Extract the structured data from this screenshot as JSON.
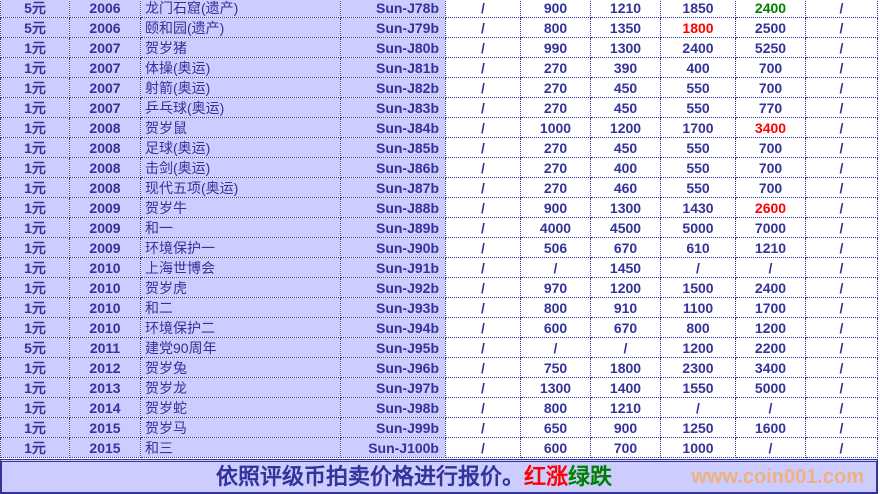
{
  "colors": {
    "text": "#333399",
    "left_bg": "#ccccff",
    "up": "#ff0000",
    "down": "#008000"
  },
  "rows": [
    [
      "5元",
      "2006",
      "龙门石窟(遗产)",
      "Sun-J78b",
      "/",
      "900",
      "1210",
      "1850",
      "2400",
      "/"
    ],
    [
      "5元",
      "2006",
      "颐和园(遗产)",
      "Sun-J79b",
      "/",
      "800",
      "1350",
      "1800",
      "2500",
      "/"
    ],
    [
      "1元",
      "2007",
      "贺岁猪",
      "Sun-J80b",
      "/",
      "990",
      "1300",
      "2400",
      "5250",
      "/"
    ],
    [
      "1元",
      "2007",
      "体操(奥运)",
      "Sun-J81b",
      "/",
      "270",
      "390",
      "400",
      "700",
      "/"
    ],
    [
      "1元",
      "2007",
      "射箭(奥运)",
      "Sun-J82b",
      "/",
      "270",
      "450",
      "550",
      "700",
      "/"
    ],
    [
      "1元",
      "2007",
      "乒乓球(奥运)",
      "Sun-J83b",
      "/",
      "270",
      "450",
      "550",
      "770",
      "/"
    ],
    [
      "1元",
      "2008",
      "贺岁鼠",
      "Sun-J84b",
      "/",
      "1000",
      "1200",
      "1700",
      "3400",
      "/"
    ],
    [
      "1元",
      "2008",
      "足球(奥运)",
      "Sun-J85b",
      "/",
      "270",
      "450",
      "550",
      "700",
      "/"
    ],
    [
      "1元",
      "2008",
      "击剑(奥运)",
      "Sun-J86b",
      "/",
      "270",
      "400",
      "550",
      "700",
      "/"
    ],
    [
      "1元",
      "2008",
      "现代五项(奥运)",
      "Sun-J87b",
      "/",
      "270",
      "460",
      "550",
      "700",
      "/"
    ],
    [
      "1元",
      "2009",
      "贺岁牛",
      "Sun-J88b",
      "/",
      "900",
      "1300",
      "1430",
      "2600",
      "/"
    ],
    [
      "1元",
      "2009",
      "和一",
      "Sun-J89b",
      "/",
      "4000",
      "4500",
      "5000",
      "7000",
      "/"
    ],
    [
      "1元",
      "2009",
      "环境保护一",
      "Sun-J90b",
      "/",
      "506",
      "670",
      "610",
      "1210",
      "/"
    ],
    [
      "1元",
      "2010",
      "上海世博会",
      "Sun-J91b",
      "/",
      "/",
      "1450",
      "/",
      "/",
      "/"
    ],
    [
      "1元",
      "2010",
      "贺岁虎",
      "Sun-J92b",
      "/",
      "970",
      "1200",
      "1500",
      "2400",
      "/"
    ],
    [
      "1元",
      "2010",
      "和二",
      "Sun-J93b",
      "/",
      "800",
      "910",
      "1100",
      "1700",
      "/"
    ],
    [
      "1元",
      "2010",
      "环境保护二",
      "Sun-J94b",
      "/",
      "600",
      "670",
      "800",
      "1200",
      "/"
    ],
    [
      "5元",
      "2011",
      "建党90周年",
      "Sun-J95b",
      "/",
      "/",
      "/",
      "1200",
      "2200",
      "/"
    ],
    [
      "1元",
      "2012",
      "贺岁兔",
      "Sun-J96b",
      "/",
      "750",
      "1800",
      "2300",
      "3400",
      "/"
    ],
    [
      "1元",
      "2013",
      "贺岁龙",
      "Sun-J97b",
      "/",
      "1300",
      "1400",
      "1550",
      "5000",
      "/"
    ],
    [
      "1元",
      "2014",
      "贺岁蛇",
      "Sun-J98b",
      "/",
      "800",
      "1210",
      "/",
      "/",
      "/"
    ],
    [
      "1元",
      "2015",
      "贺岁马",
      "Sun-J99b",
      "/",
      "650",
      "900",
      "1250",
      "1600",
      "/"
    ],
    [
      "1元",
      "2015",
      "和三",
      "Sun-J100b",
      "/",
      "600",
      "700",
      "1000",
      "/",
      "/"
    ]
  ],
  "highlights": [
    {
      "row": 0,
      "col": 8,
      "trend": "down"
    },
    {
      "row": 1,
      "col": 7,
      "trend": "up"
    },
    {
      "row": 6,
      "col": 8,
      "trend": "up"
    },
    {
      "row": 10,
      "col": 8,
      "trend": "up"
    }
  ],
  "footer": {
    "message": "依照评级币拍卖价格进行报价。",
    "up_label": "红涨",
    "down_label": "绿跌",
    "watermark": "www.coin001.com"
  }
}
